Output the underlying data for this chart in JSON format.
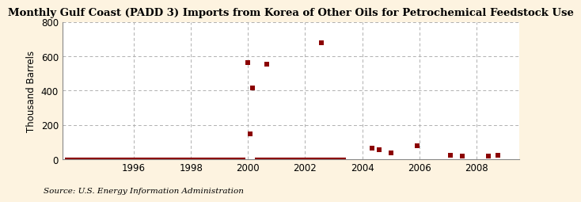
{
  "title": "Monthly Gulf Coast (PADD 3) Imports from Korea of Other Oils for Petrochemical Feedstock Use",
  "ylabel": "Thousand Barrels",
  "source": "Source: U.S. Energy Information Administration",
  "background_color": "#fdf3e0",
  "plot_bg_color": "#ffffff",
  "marker_color": "#8b0000",
  "marker_size": 18,
  "ylim": [
    0,
    800
  ],
  "yticks": [
    0,
    200,
    400,
    600,
    800
  ],
  "xlim_start": 1993.5,
  "xlim_end": 2009.5,
  "xticks": [
    1996,
    1998,
    2000,
    2002,
    2004,
    2006,
    2008
  ],
  "scatter_points": [
    [
      2000.0,
      562
    ],
    [
      2000.08,
      150
    ],
    [
      2000.17,
      415
    ],
    [
      2000.67,
      555
    ],
    [
      2002.58,
      680
    ],
    [
      2004.33,
      65
    ],
    [
      2004.58,
      55
    ],
    [
      2005.0,
      38
    ],
    [
      2005.92,
      80
    ],
    [
      2007.08,
      22
    ],
    [
      2007.5,
      18
    ],
    [
      2008.42,
      20
    ],
    [
      2008.75,
      22
    ]
  ],
  "zero_line_segments": [
    [
      1993.6,
      1999.92
    ],
    [
      2000.25,
      2003.42
    ]
  ]
}
